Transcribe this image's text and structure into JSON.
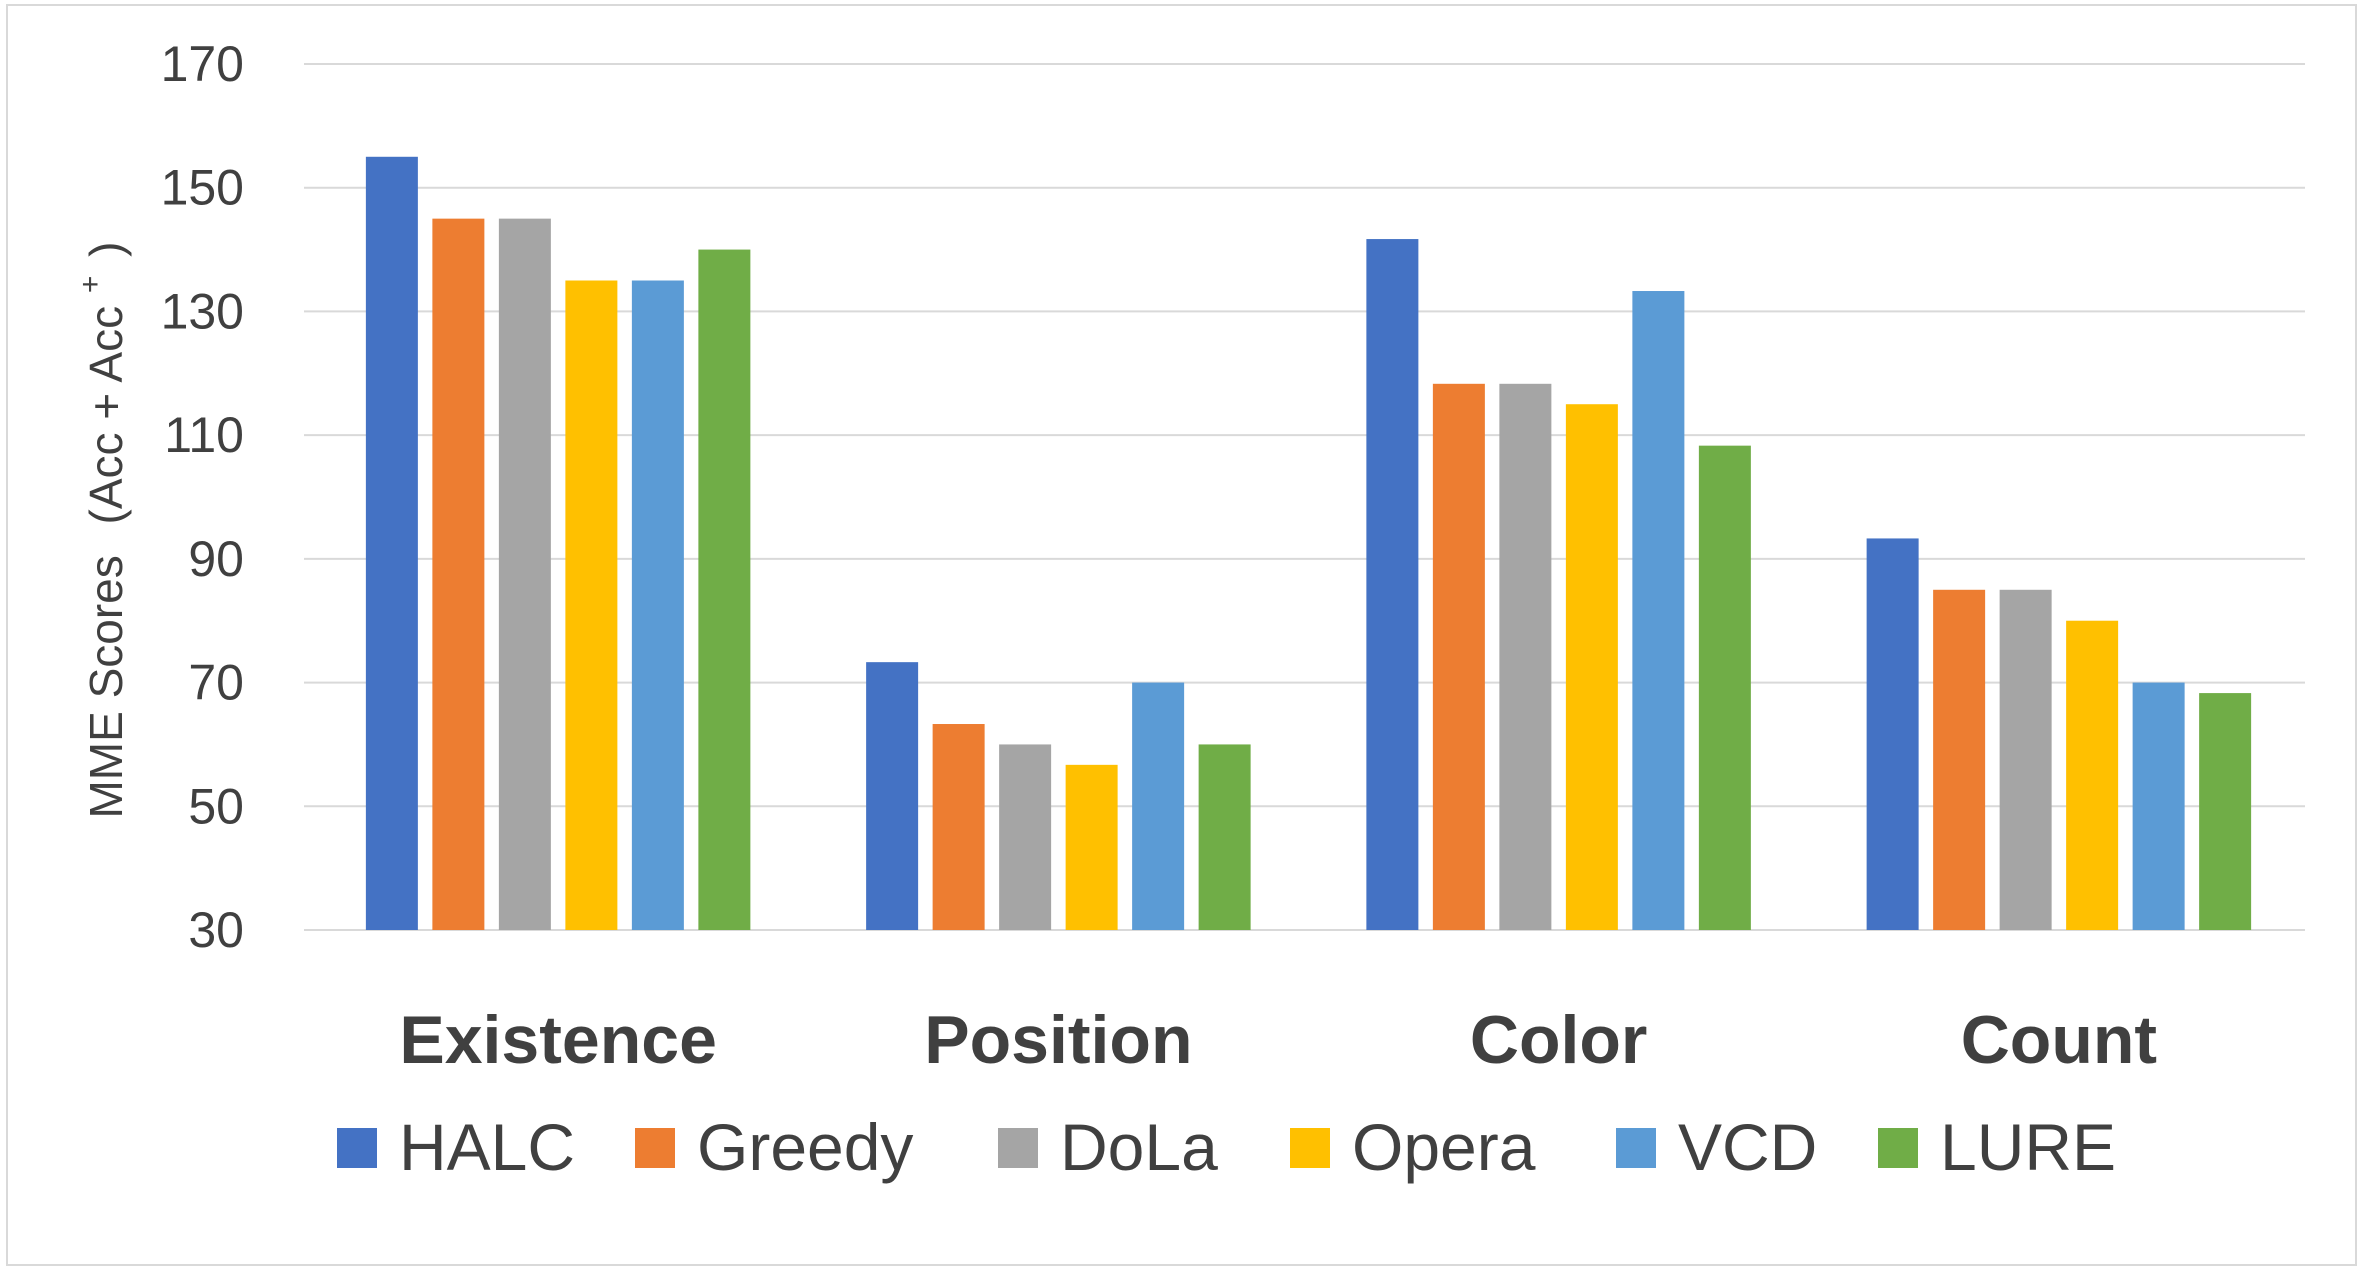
{
  "chart_data": {
    "type": "bar",
    "title": "",
    "xlabel": "",
    "ylabel": "MME Scores",
    "ylabel_suffix": "(Acc + Acc",
    "ylabel_superscript": "+",
    "ylabel_close": ")",
    "ylim": [
      30,
      170
    ],
    "yticks": [
      30,
      50,
      70,
      90,
      110,
      130,
      150,
      170
    ],
    "grid": true,
    "legend_position": "bottom",
    "categories": [
      "Existence",
      "Position",
      "Color",
      "Count"
    ],
    "series": [
      {
        "name": "HALC",
        "color": "#4472c4",
        "values": [
          155,
          73.3,
          141.7,
          93.3
        ]
      },
      {
        "name": "Greedy",
        "color": "#ed7d31",
        "values": [
          145,
          63.3,
          118.3,
          85
        ]
      },
      {
        "name": "DoLa",
        "color": "#a5a5a5",
        "values": [
          145,
          60,
          118.3,
          85
        ]
      },
      {
        "name": "Opera",
        "color": "#ffc000",
        "values": [
          135,
          56.7,
          115,
          80
        ]
      },
      {
        "name": "VCD",
        "color": "#5b9bd5",
        "values": [
          135,
          70,
          133.3,
          70
        ]
      },
      {
        "name": "LURE",
        "color": "#70ad47",
        "values": [
          140,
          60,
          108.3,
          68.3
        ]
      }
    ]
  }
}
